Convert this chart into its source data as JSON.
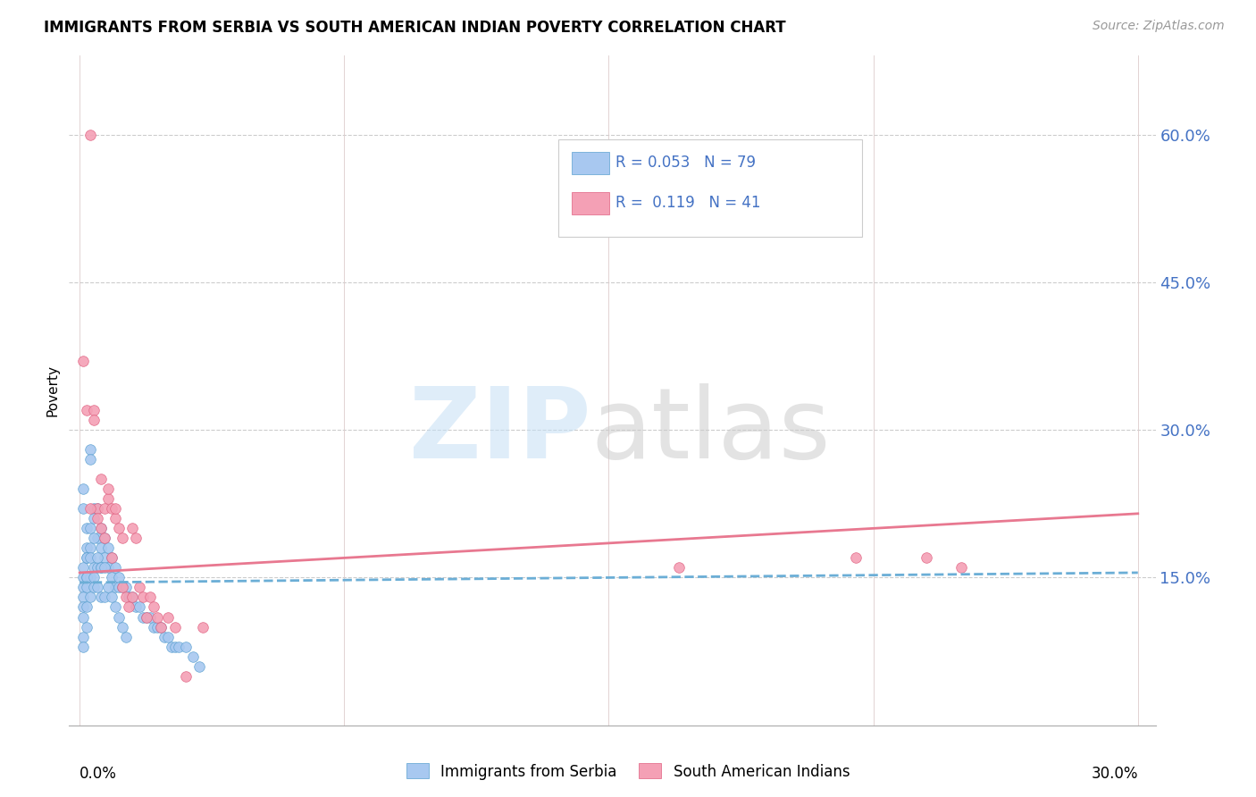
{
  "title": "IMMIGRANTS FROM SERBIA VS SOUTH AMERICAN INDIAN POVERTY CORRELATION CHART",
  "source": "Source: ZipAtlas.com",
  "ylabel": "Poverty",
  "yticks": [
    "15.0%",
    "30.0%",
    "45.0%",
    "60.0%"
  ],
  "ytick_vals": [
    0.15,
    0.3,
    0.45,
    0.6
  ],
  "xlim": [
    -0.003,
    0.305
  ],
  "ylim": [
    0.0,
    0.68
  ],
  "color_serbia": "#a8c8f0",
  "color_serbia_edge": "#5aa0d0",
  "color_india": "#f4a0b5",
  "color_india_edge": "#e06080",
  "color_trendline_serbia": "#6baed6",
  "color_trendline_india": "#e87890",
  "serbia_x": [
    0.001,
    0.001,
    0.001,
    0.001,
    0.001,
    0.001,
    0.001,
    0.001,
    0.002,
    0.002,
    0.002,
    0.002,
    0.002,
    0.002,
    0.003,
    0.003,
    0.003,
    0.003,
    0.003,
    0.004,
    0.004,
    0.004,
    0.004,
    0.005,
    0.005,
    0.005,
    0.006,
    0.006,
    0.006,
    0.007,
    0.007,
    0.008,
    0.008,
    0.009,
    0.009,
    0.01,
    0.01,
    0.011,
    0.011,
    0.012,
    0.013,
    0.014,
    0.015,
    0.016,
    0.017,
    0.018,
    0.019,
    0.02,
    0.021,
    0.022,
    0.023,
    0.024,
    0.025,
    0.026,
    0.027,
    0.028,
    0.03,
    0.032,
    0.034,
    0.001,
    0.001,
    0.002,
    0.002,
    0.002,
    0.003,
    0.003,
    0.004,
    0.004,
    0.005,
    0.005,
    0.006,
    0.006,
    0.007,
    0.007,
    0.008,
    0.009,
    0.01,
    0.011,
    0.012,
    0.013
  ],
  "serbia_y": [
    0.16,
    0.15,
    0.14,
    0.13,
    0.12,
    0.11,
    0.09,
    0.08,
    0.18,
    0.17,
    0.15,
    0.14,
    0.12,
    0.1,
    0.28,
    0.27,
    0.18,
    0.15,
    0.13,
    0.22,
    0.21,
    0.16,
    0.14,
    0.22,
    0.19,
    0.16,
    0.2,
    0.18,
    0.16,
    0.19,
    0.17,
    0.18,
    0.16,
    0.17,
    0.15,
    0.16,
    0.14,
    0.15,
    0.14,
    0.14,
    0.14,
    0.13,
    0.13,
    0.12,
    0.12,
    0.11,
    0.11,
    0.11,
    0.1,
    0.1,
    0.1,
    0.09,
    0.09,
    0.08,
    0.08,
    0.08,
    0.08,
    0.07,
    0.06,
    0.24,
    0.22,
    0.2,
    0.17,
    0.15,
    0.2,
    0.17,
    0.19,
    0.15,
    0.17,
    0.14,
    0.16,
    0.13,
    0.16,
    0.13,
    0.14,
    0.13,
    0.12,
    0.11,
    0.1,
    0.09
  ],
  "india_x": [
    0.001,
    0.002,
    0.003,
    0.004,
    0.005,
    0.006,
    0.007,
    0.008,
    0.009,
    0.01,
    0.011,
    0.012,
    0.013,
    0.014,
    0.015,
    0.016,
    0.017,
    0.018,
    0.019,
    0.02,
    0.021,
    0.022,
    0.023,
    0.025,
    0.027,
    0.03,
    0.035,
    0.004,
    0.006,
    0.008,
    0.01,
    0.012,
    0.015,
    0.17,
    0.22,
    0.24,
    0.25,
    0.003,
    0.005,
    0.007,
    0.009
  ],
  "india_y": [
    0.37,
    0.32,
    0.6,
    0.32,
    0.22,
    0.2,
    0.22,
    0.23,
    0.22,
    0.21,
    0.2,
    0.14,
    0.13,
    0.12,
    0.2,
    0.19,
    0.14,
    0.13,
    0.11,
    0.13,
    0.12,
    0.11,
    0.1,
    0.11,
    0.1,
    0.05,
    0.1,
    0.31,
    0.25,
    0.24,
    0.22,
    0.19,
    0.13,
    0.16,
    0.17,
    0.17,
    0.16,
    0.22,
    0.21,
    0.19,
    0.17
  ],
  "serbia_trend_x": [
    0.0,
    0.3
  ],
  "serbia_trend_y": [
    0.145,
    0.155
  ],
  "india_trend_x": [
    0.0,
    0.3
  ],
  "india_trend_y": [
    0.155,
    0.215
  ],
  "vline_x": [
    0.0,
    0.075,
    0.15,
    0.225,
    0.3
  ]
}
